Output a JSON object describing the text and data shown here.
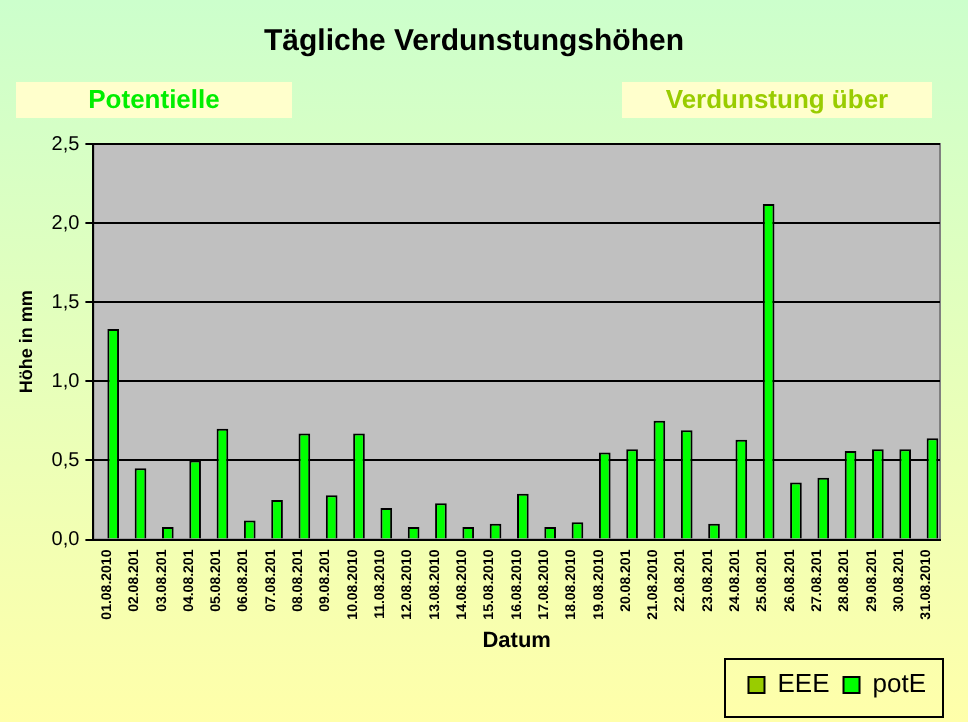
{
  "chart_data": {
    "type": "bar",
    "title": "Tägliche Verdunstungshöhen",
    "xlabel": "Datum",
    "ylabel": "Höhe in mm",
    "annotations": [
      "Potentielle",
      "Verdunstung über"
    ],
    "categories": [
      "01.08.2010",
      "02.08.201",
      "03.08.201",
      "04.08.201",
      "05.08.201",
      "06.08.201",
      "07.08.201",
      "08.08.201",
      "09.08.201",
      "10.08.2010",
      "11.08.2010",
      "12.08.2010",
      "13.08.2010",
      "14.08.2010",
      "15.08.2010",
      "16.08.2010",
      "17.08.2010",
      "18.08.2010",
      "19.08.2010",
      "20.08.201",
      "21.08.2010",
      "22.08.201",
      "23.08.201",
      "24.08.201",
      "25.08.201",
      "26.08.201",
      "27.08.201",
      "28.08.201",
      "29.08.201",
      "30.08.201",
      "31.08.2010"
    ],
    "series": [
      {
        "name": "EEE",
        "color": "#99cc00",
        "values": [
          null,
          null,
          null,
          null,
          null,
          null,
          null,
          null,
          null,
          null,
          null,
          null,
          null,
          null,
          null,
          null,
          null,
          null,
          null,
          null,
          null,
          null,
          null,
          null,
          null,
          null,
          null,
          null,
          null,
          null,
          null
        ]
      },
      {
        "name": "potE",
        "color": "#00ff00",
        "values": [
          1.33,
          0.45,
          0.08,
          0.5,
          0.7,
          0.12,
          0.25,
          0.67,
          0.28,
          0.67,
          0.2,
          0.08,
          0.23,
          0.08,
          0.1,
          0.29,
          0.08,
          0.11,
          0.55,
          0.57,
          0.75,
          0.69,
          0.1,
          0.63,
          2.12,
          0.36,
          0.39,
          0.56,
          0.57,
          0.57,
          0.64
        ]
      }
    ],
    "ylim": [
      0,
      2.5
    ],
    "yticks": [
      {
        "value": 0,
        "label": "0,0"
      },
      {
        "value": 0.5,
        "label": "0,5"
      },
      {
        "value": 1,
        "label": "1,0"
      },
      {
        "value": 1.5,
        "label": "1,5"
      },
      {
        "value": 2,
        "label": "2,0"
      },
      {
        "value": 2.5,
        "label": "2,5"
      }
    ],
    "grid": "y",
    "legend": "bottom right"
  }
}
